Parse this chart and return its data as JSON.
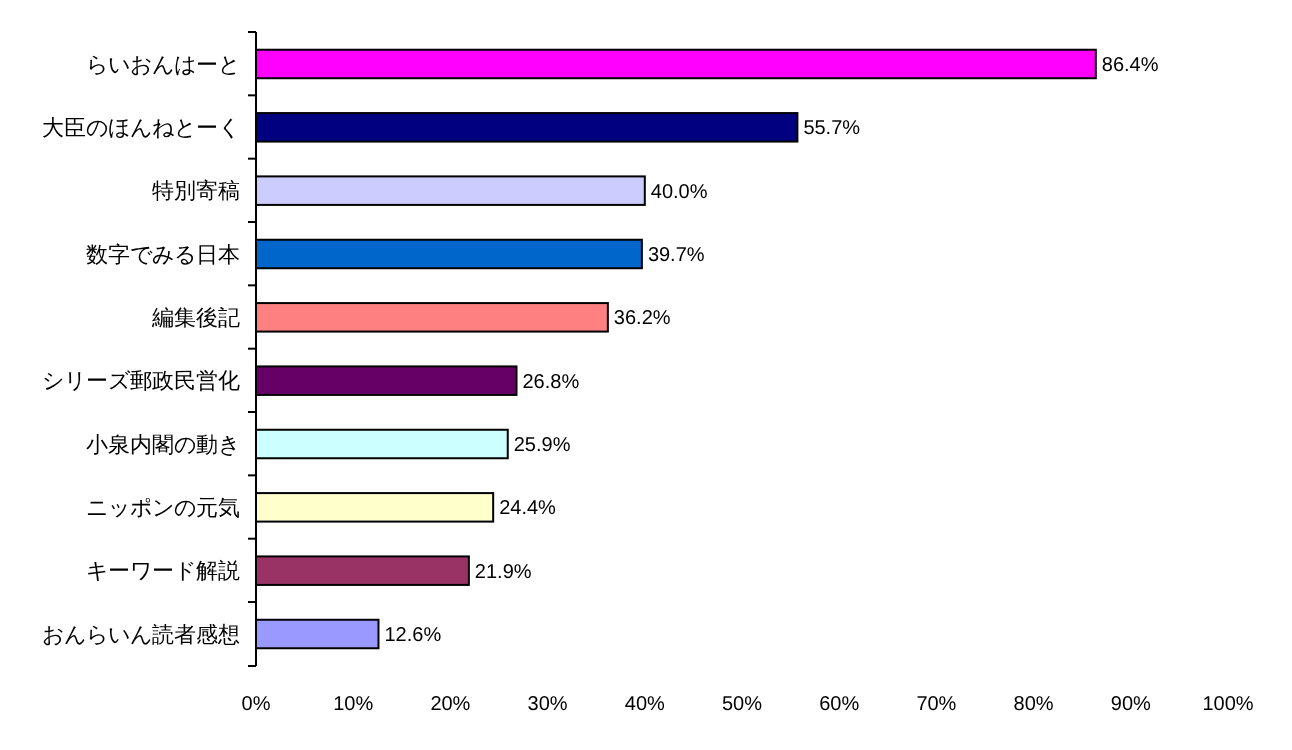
{
  "chart_data": {
    "type": "bar",
    "orientation": "horizontal",
    "categories": [
      "らいおんはーと",
      "大臣のほんねとーく",
      "特別寄稿",
      "数字でみる日本",
      "編集後記",
      "シリーズ郵政民営化",
      "小泉内閣の動き",
      "ニッポンの元気",
      "キーワード解説",
      "おんらいん読者感想"
    ],
    "values": [
      86.4,
      55.7,
      40.0,
      39.7,
      36.2,
      26.8,
      25.9,
      24.4,
      21.9,
      12.6
    ],
    "colors": [
      "#ff00ff",
      "#000080",
      "#ccccff",
      "#0066cc",
      "#ff8080",
      "#660066",
      "#ccffff",
      "#ffffcc",
      "#993366",
      "#9999ff"
    ],
    "value_labels": [
      "86.4%",
      "55.7%",
      "40.0%",
      "39.7%",
      "36.2%",
      "26.8%",
      "25.9%",
      "24.4%",
      "21.9%",
      "12.6%"
    ],
    "xlim": [
      0,
      100
    ],
    "xticks": [
      {
        "value": 0,
        "label": "0%"
      },
      {
        "value": 10,
        "label": "10%"
      },
      {
        "value": 20,
        "label": "20%"
      },
      {
        "value": 30,
        "label": "30%"
      },
      {
        "value": 40,
        "label": "40%"
      },
      {
        "value": 50,
        "label": "50%"
      },
      {
        "value": 60,
        "label": "60%"
      },
      {
        "value": 70,
        "label": "70%"
      },
      {
        "value": 80,
        "label": "80%"
      },
      {
        "value": 90,
        "label": "90%"
      },
      {
        "value": 100,
        "label": "100%"
      }
    ]
  }
}
